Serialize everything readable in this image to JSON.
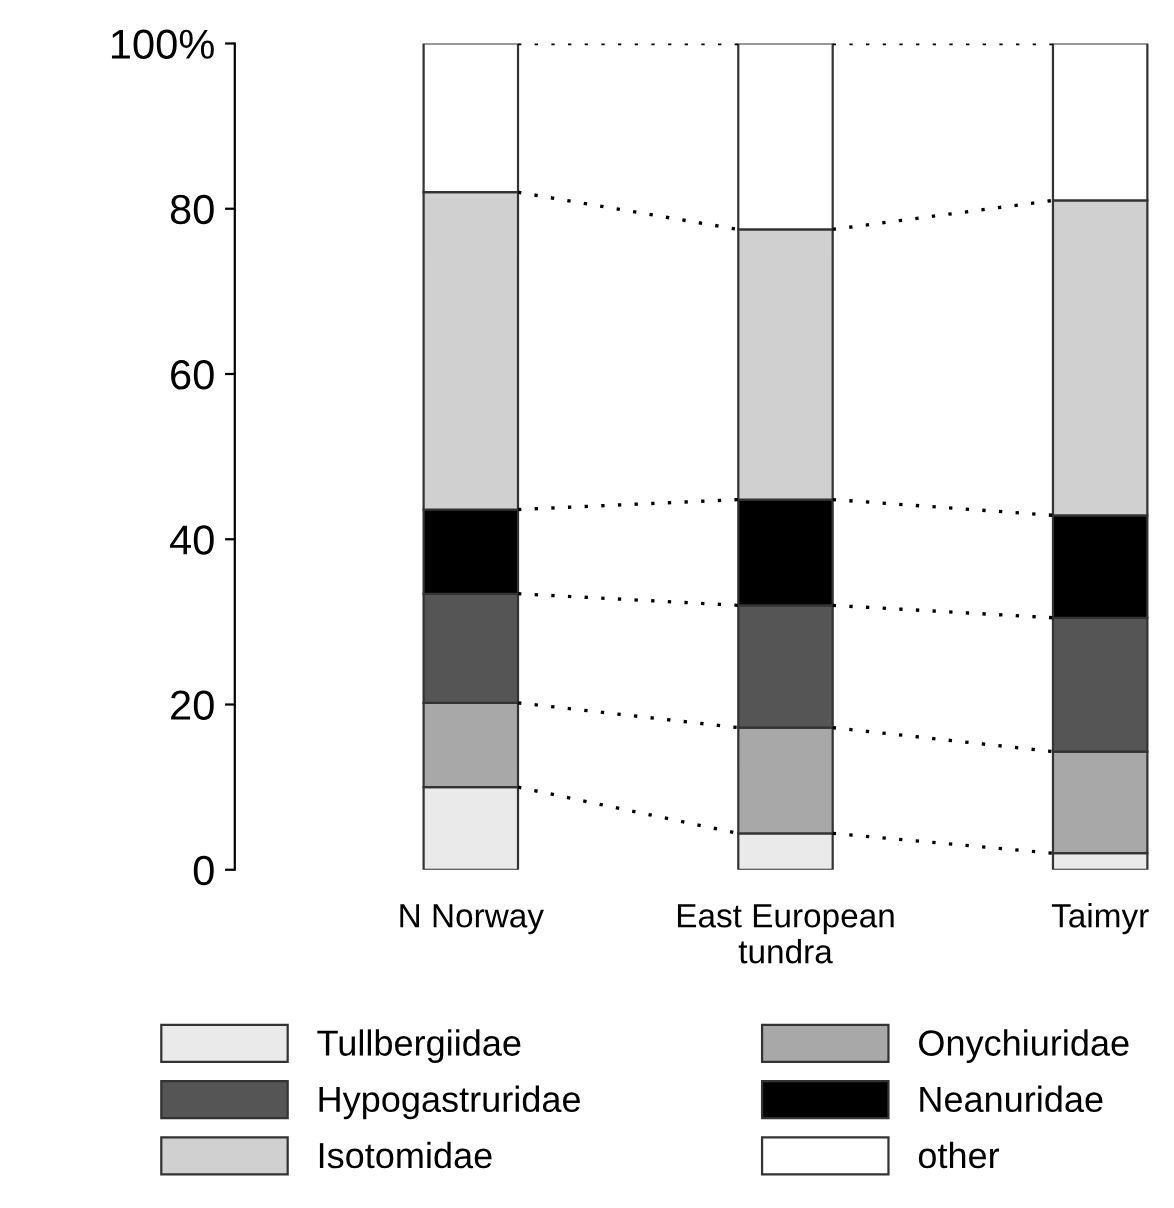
{
  "chart_data": {
    "type": "bar",
    "stacked": true,
    "categories": [
      "N Norway",
      "East European\ntundra",
      "Taimyr"
    ],
    "series": [
      {
        "name": "Tullbergiidae",
        "color": "#eaeaea",
        "values": [
          10,
          4.4,
          2
        ]
      },
      {
        "name": "Onychiuridae",
        "color": "#a8a8a8",
        "values": [
          10.2,
          12.8,
          12.3
        ]
      },
      {
        "name": "Hypogastruridae",
        "color": "#555555",
        "values": [
          13.2,
          14.8,
          16.2
        ]
      },
      {
        "name": "Neanuridae",
        "color": "#000000",
        "values": [
          10.2,
          12.8,
          12.4
        ]
      },
      {
        "name": "Isotomidae",
        "color": "#d0d0d0",
        "values": [
          38.4,
          32.7,
          38.1
        ]
      },
      {
        "name": "other",
        "color": "#ffffff",
        "values": [
          18,
          22.5,
          19
        ]
      }
    ],
    "ylim": [
      0,
      100
    ],
    "yticks": [
      0,
      20,
      40,
      60,
      80,
      {
        "value": 100,
        "label": "100%"
      }
    ],
    "grid": false,
    "legend": "bottom"
  }
}
